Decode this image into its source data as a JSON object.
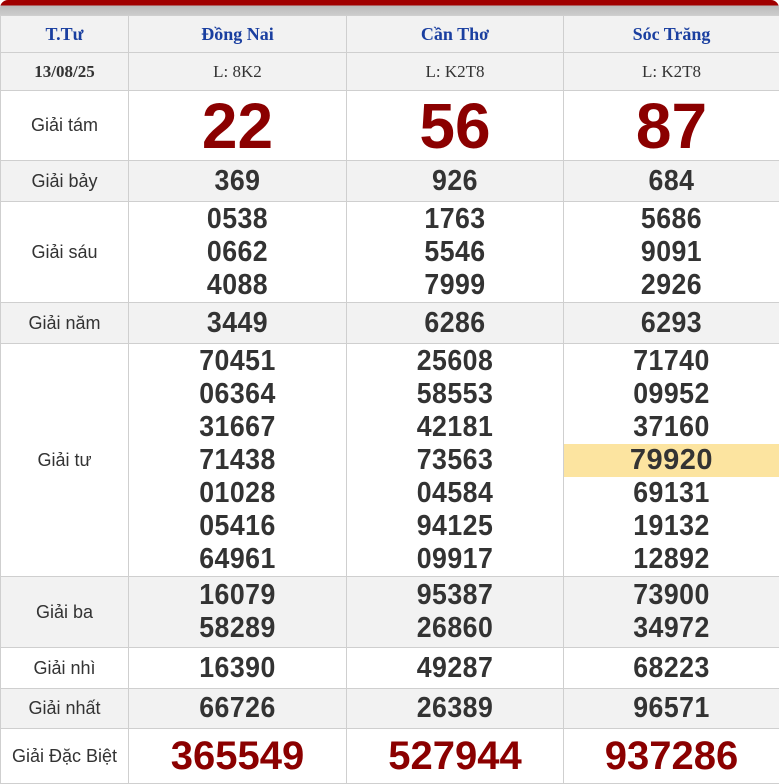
{
  "header": {
    "day": "T.Tư",
    "provinces": [
      "Đồng Nai",
      "Cần Thơ",
      "Sóc Trăng"
    ]
  },
  "date": "13/08/25",
  "lots": [
    "L: 8K2",
    "L: K2T8",
    "L: K2T8"
  ],
  "prizes": [
    {
      "label": "Giải tám",
      "values": [
        [
          "22"
        ],
        [
          "56"
        ],
        [
          "87"
        ]
      ]
    },
    {
      "label": "Giải bảy",
      "values": [
        [
          "369"
        ],
        [
          "926"
        ],
        [
          "684"
        ]
      ]
    },
    {
      "label": "Giải sáu",
      "values": [
        [
          "0538",
          "0662",
          "4088"
        ],
        [
          "1763",
          "5546",
          "7999"
        ],
        [
          "5686",
          "9091",
          "2926"
        ]
      ]
    },
    {
      "label": "Giải năm",
      "values": [
        [
          "3449"
        ],
        [
          "6286"
        ],
        [
          "6293"
        ]
      ]
    },
    {
      "label": "Giải tư",
      "values": [
        [
          "70451",
          "06364",
          "31667",
          "71438",
          "01028",
          "05416",
          "64961"
        ],
        [
          "25608",
          "58553",
          "42181",
          "73563",
          "04584",
          "94125",
          "09917"
        ],
        [
          "71740",
          "09952",
          "37160",
          "79920",
          "69131",
          "19132",
          "12892"
        ]
      ]
    },
    {
      "label": "Giải ba",
      "values": [
        [
          "16079",
          "58289"
        ],
        [
          "95387",
          "26860"
        ],
        [
          "73900",
          "34972"
        ]
      ]
    },
    {
      "label": "Giải nhì",
      "values": [
        [
          "16390"
        ],
        [
          "49287"
        ],
        [
          "68223"
        ]
      ]
    },
    {
      "label": "Giải nhất",
      "values": [
        [
          "66726"
        ],
        [
          "26389"
        ],
        [
          "96571"
        ]
      ]
    },
    {
      "label": "Giải Đặc Biệt",
      "values": [
        [
          "365549"
        ],
        [
          "527944"
        ],
        [
          "937286"
        ]
      ]
    }
  ],
  "highlighted": {
    "prize": "Giải tư",
    "province": "Sóc Trăng",
    "value": "79920",
    "color": "#fce4a0"
  },
  "colors": {
    "header_text": "#1a3fa0",
    "jackpot": "#8b0000",
    "accent_bar": "#a00000"
  }
}
